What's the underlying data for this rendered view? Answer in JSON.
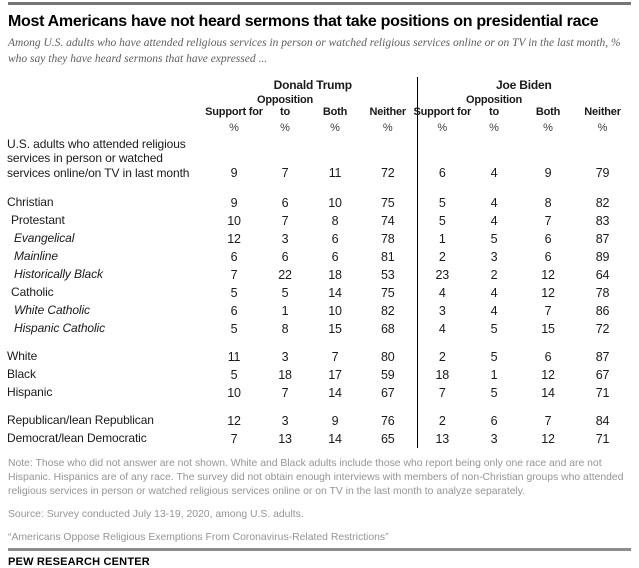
{
  "chart_data": {
    "type": "table",
    "title": "Most Americans have not heard sermons that take positions on presidential race",
    "subtitle": "Among U.S. adults who have attended religious services in person or watched religious services online or on TV in the last month, % who say they have heard sermons that have expressed ...",
    "unit": "%",
    "groups": [
      {
        "label": "Donald Trump",
        "columns": [
          "Support for",
          "Opposition to",
          "Both",
          "Neither"
        ]
      },
      {
        "label": "Joe Biden",
        "columns": [
          "Support for",
          "Opposition to",
          "Both",
          "Neither"
        ]
      }
    ],
    "rows": [
      {
        "label": "U.S. adults who attended religious services in person or watched services online/on TV in last month",
        "indent": 0,
        "italic": false,
        "gap_before": false,
        "values": [
          9,
          7,
          11,
          72,
          6,
          4,
          9,
          79
        ]
      },
      {
        "label": "Christian",
        "indent": 0,
        "italic": false,
        "gap_before": true,
        "values": [
          9,
          6,
          10,
          75,
          5,
          4,
          8,
          82
        ]
      },
      {
        "label": "Protestant",
        "indent": 1,
        "italic": false,
        "gap_before": false,
        "values": [
          10,
          7,
          8,
          74,
          5,
          4,
          7,
          83
        ]
      },
      {
        "label": "Evangelical",
        "indent": 2,
        "italic": true,
        "gap_before": false,
        "values": [
          12,
          3,
          6,
          78,
          1,
          5,
          6,
          87
        ]
      },
      {
        "label": "Mainline",
        "indent": 2,
        "italic": true,
        "gap_before": false,
        "values": [
          6,
          6,
          6,
          81,
          2,
          3,
          6,
          89
        ]
      },
      {
        "label": "Historically Black",
        "indent": 2,
        "italic": true,
        "gap_before": false,
        "values": [
          7,
          22,
          18,
          53,
          23,
          2,
          12,
          64
        ]
      },
      {
        "label": "Catholic",
        "indent": 1,
        "italic": false,
        "gap_before": false,
        "values": [
          5,
          5,
          14,
          75,
          4,
          4,
          12,
          78
        ]
      },
      {
        "label": "White Catholic",
        "indent": 2,
        "italic": true,
        "gap_before": false,
        "values": [
          6,
          1,
          10,
          82,
          3,
          4,
          7,
          86
        ]
      },
      {
        "label": "Hispanic Catholic",
        "indent": 2,
        "italic": true,
        "gap_before": false,
        "values": [
          5,
          8,
          15,
          68,
          4,
          5,
          15,
          72
        ]
      },
      {
        "label": "White",
        "indent": 0,
        "italic": false,
        "gap_before": true,
        "values": [
          11,
          3,
          7,
          80,
          2,
          5,
          6,
          87
        ]
      },
      {
        "label": "Black",
        "indent": 0,
        "italic": false,
        "gap_before": false,
        "values": [
          5,
          18,
          17,
          59,
          18,
          1,
          12,
          67
        ]
      },
      {
        "label": "Hispanic",
        "indent": 0,
        "italic": false,
        "gap_before": false,
        "values": [
          10,
          7,
          14,
          67,
          7,
          5,
          14,
          71
        ]
      },
      {
        "label": "Republican/lean Republican",
        "indent": 0,
        "italic": false,
        "gap_before": true,
        "values": [
          12,
          3,
          9,
          76,
          2,
          6,
          7,
          84
        ]
      },
      {
        "label": "Democrat/lean Democratic",
        "indent": 0,
        "italic": false,
        "gap_before": false,
        "values": [
          7,
          13,
          14,
          65,
          13,
          3,
          12,
          71
        ]
      }
    ]
  },
  "footer": {
    "note": "Note: Those who did not answer are not shown. White and Black adults include those who report being only one race and are not Hispanic. Hispanics are of any race. The survey did not obtain enough interviews with members of non-Christian groups who attended religious services in person or watched religious services online or on TV in the last month to analyze separately.",
    "source": "Source: Survey conducted July 13-19, 2020, among U.S. adults.",
    "report": "“Americans Oppose Religious Exemptions From Coronavirus-Related Restrictions”",
    "brand": "PEW RESEARCH CENTER"
  },
  "colors": {
    "divider": "#000000",
    "rule-top": "#757575",
    "rule-bottom": "#8d8d8d",
    "subtitle-text": "#5e5e5e",
    "note-text": "#959595",
    "text": "#1a1a1a"
  }
}
